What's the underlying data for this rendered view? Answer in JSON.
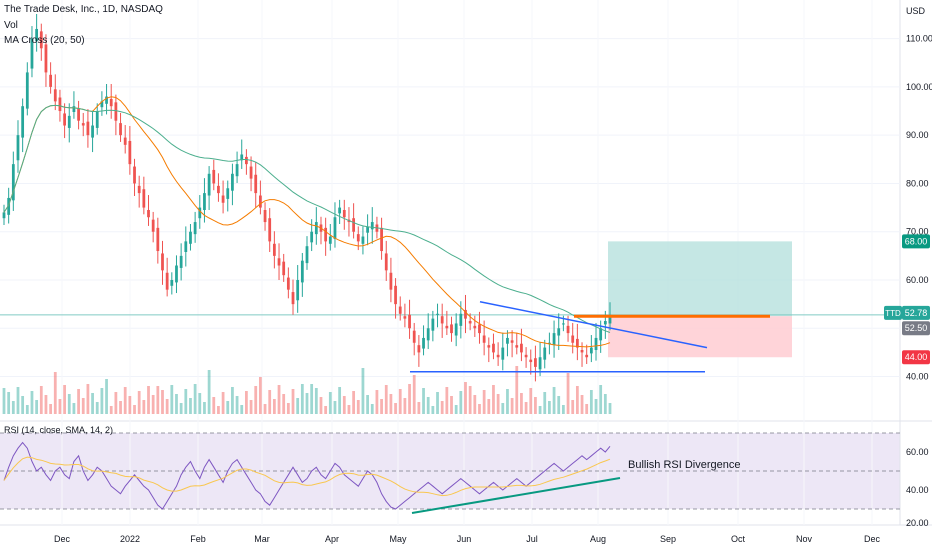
{
  "header": {
    "symbol": "The Trade Desk, Inc., 1D, NASDAQ",
    "vol_label": "Vol",
    "ma_label": "MA Cross (20, 50)",
    "currency": "USD"
  },
  "rsi_panel": {
    "label": "RSI (14, close, SMA, 14, 2)",
    "annotation": "Bullish RSI Divergence",
    "levels": [
      70,
      50,
      30
    ],
    "ticks": [
      60.0,
      40.0,
      20.0
    ]
  },
  "badges": {
    "target": "68.00",
    "ticker": "TTD",
    "last": "52.78",
    "entry": "52.50",
    "stop": "44.00"
  },
  "colors": {
    "up": "#26a69a",
    "down": "#ef5350",
    "ma_fast": "#f57c00",
    "ma_slow": "#4caf8e",
    "trendline": "#2962ff",
    "rsi": "#7e57c2",
    "rsi_ma": "#f9c74f",
    "target_zone": "#b2dfdb",
    "stop_zone": "#ffcdd2",
    "resistance": "#ff6d00",
    "divergence": "#089981"
  },
  "chart_data": {
    "type": "candlestick",
    "y_axis": {
      "ticks": [
        40.0,
        50.0,
        60.0,
        70.0,
        80.0,
        90.0,
        100.0,
        110.0
      ],
      "ylim": [
        31,
        118
      ]
    },
    "x_axis": {
      "labels": [
        "Dec",
        "2022",
        "Feb",
        "Mar",
        "Apr",
        "May",
        "Jun",
        "Jul",
        "Aug",
        "Sep",
        "Oct",
        "Nov",
        "Dec"
      ]
    },
    "close_series": [
      74,
      77,
      84,
      90,
      96,
      103,
      110,
      112,
      108,
      103,
      100,
      97,
      95,
      92,
      94,
      96,
      93,
      92,
      90,
      92,
      95,
      97,
      98,
      96,
      93,
      90,
      88,
      84,
      80,
      78,
      75,
      73,
      70,
      66,
      62,
      58,
      60,
      63,
      65,
      68,
      70,
      72,
      75,
      78,
      82,
      80,
      78,
      76,
      79,
      82,
      84,
      86,
      84,
      81,
      78,
      75,
      72,
      68,
      65,
      63,
      61,
      58,
      55,
      60,
      64,
      67,
      70,
      72,
      70,
      68,
      69,
      73,
      75,
      73,
      72,
      70,
      68,
      69,
      71,
      72,
      70,
      66,
      62,
      58,
      55,
      53,
      52,
      50,
      47,
      45,
      48,
      50,
      52,
      53,
      51,
      50,
      49,
      51,
      53,
      52,
      51,
      50,
      49,
      47,
      46,
      45,
      44,
      46,
      48,
      47,
      46,
      45,
      44,
      43,
      42,
      44,
      46,
      47,
      49,
      50,
      51,
      49,
      47,
      46,
      45,
      44,
      46,
      48,
      50,
      51.5,
      52.78
    ],
    "ma20_note": "orange fast moving average",
    "ma50_note": "green slow moving average",
    "levels": {
      "target": 68.0,
      "entry": 52.5,
      "stop": 44.0,
      "last": 52.78
    },
    "rsi": [
      45,
      52,
      58,
      62,
      65,
      62,
      55,
      50,
      52,
      48,
      45,
      50,
      52,
      48,
      46,
      55,
      58,
      50,
      45,
      48,
      52,
      50,
      46,
      42,
      40,
      38,
      42,
      45,
      48,
      45,
      42,
      40,
      36,
      32,
      30,
      34,
      38,
      42,
      48,
      52,
      55,
      50,
      46,
      52,
      56,
      52,
      48,
      44,
      50,
      54,
      56,
      52,
      48,
      44,
      40,
      38,
      34,
      32,
      36,
      40,
      44,
      48,
      52,
      48,
      44,
      46,
      50,
      52,
      48,
      46,
      50,
      54,
      52,
      48,
      46,
      44,
      42,
      46,
      50,
      48,
      44,
      38,
      34,
      31,
      30,
      32,
      34,
      36,
      38,
      40,
      42,
      44,
      42,
      40,
      38,
      40,
      42,
      44,
      46,
      44,
      42,
      40,
      38,
      40,
      42,
      44,
      42,
      40,
      42,
      44,
      46,
      44,
      42,
      44,
      46,
      48,
      50,
      52,
      54,
      52,
      50,
      52,
      54,
      56,
      58,
      56,
      58,
      60,
      62,
      60,
      63
    ],
    "annotations": [
      "Bullish RSI Divergence"
    ]
  }
}
